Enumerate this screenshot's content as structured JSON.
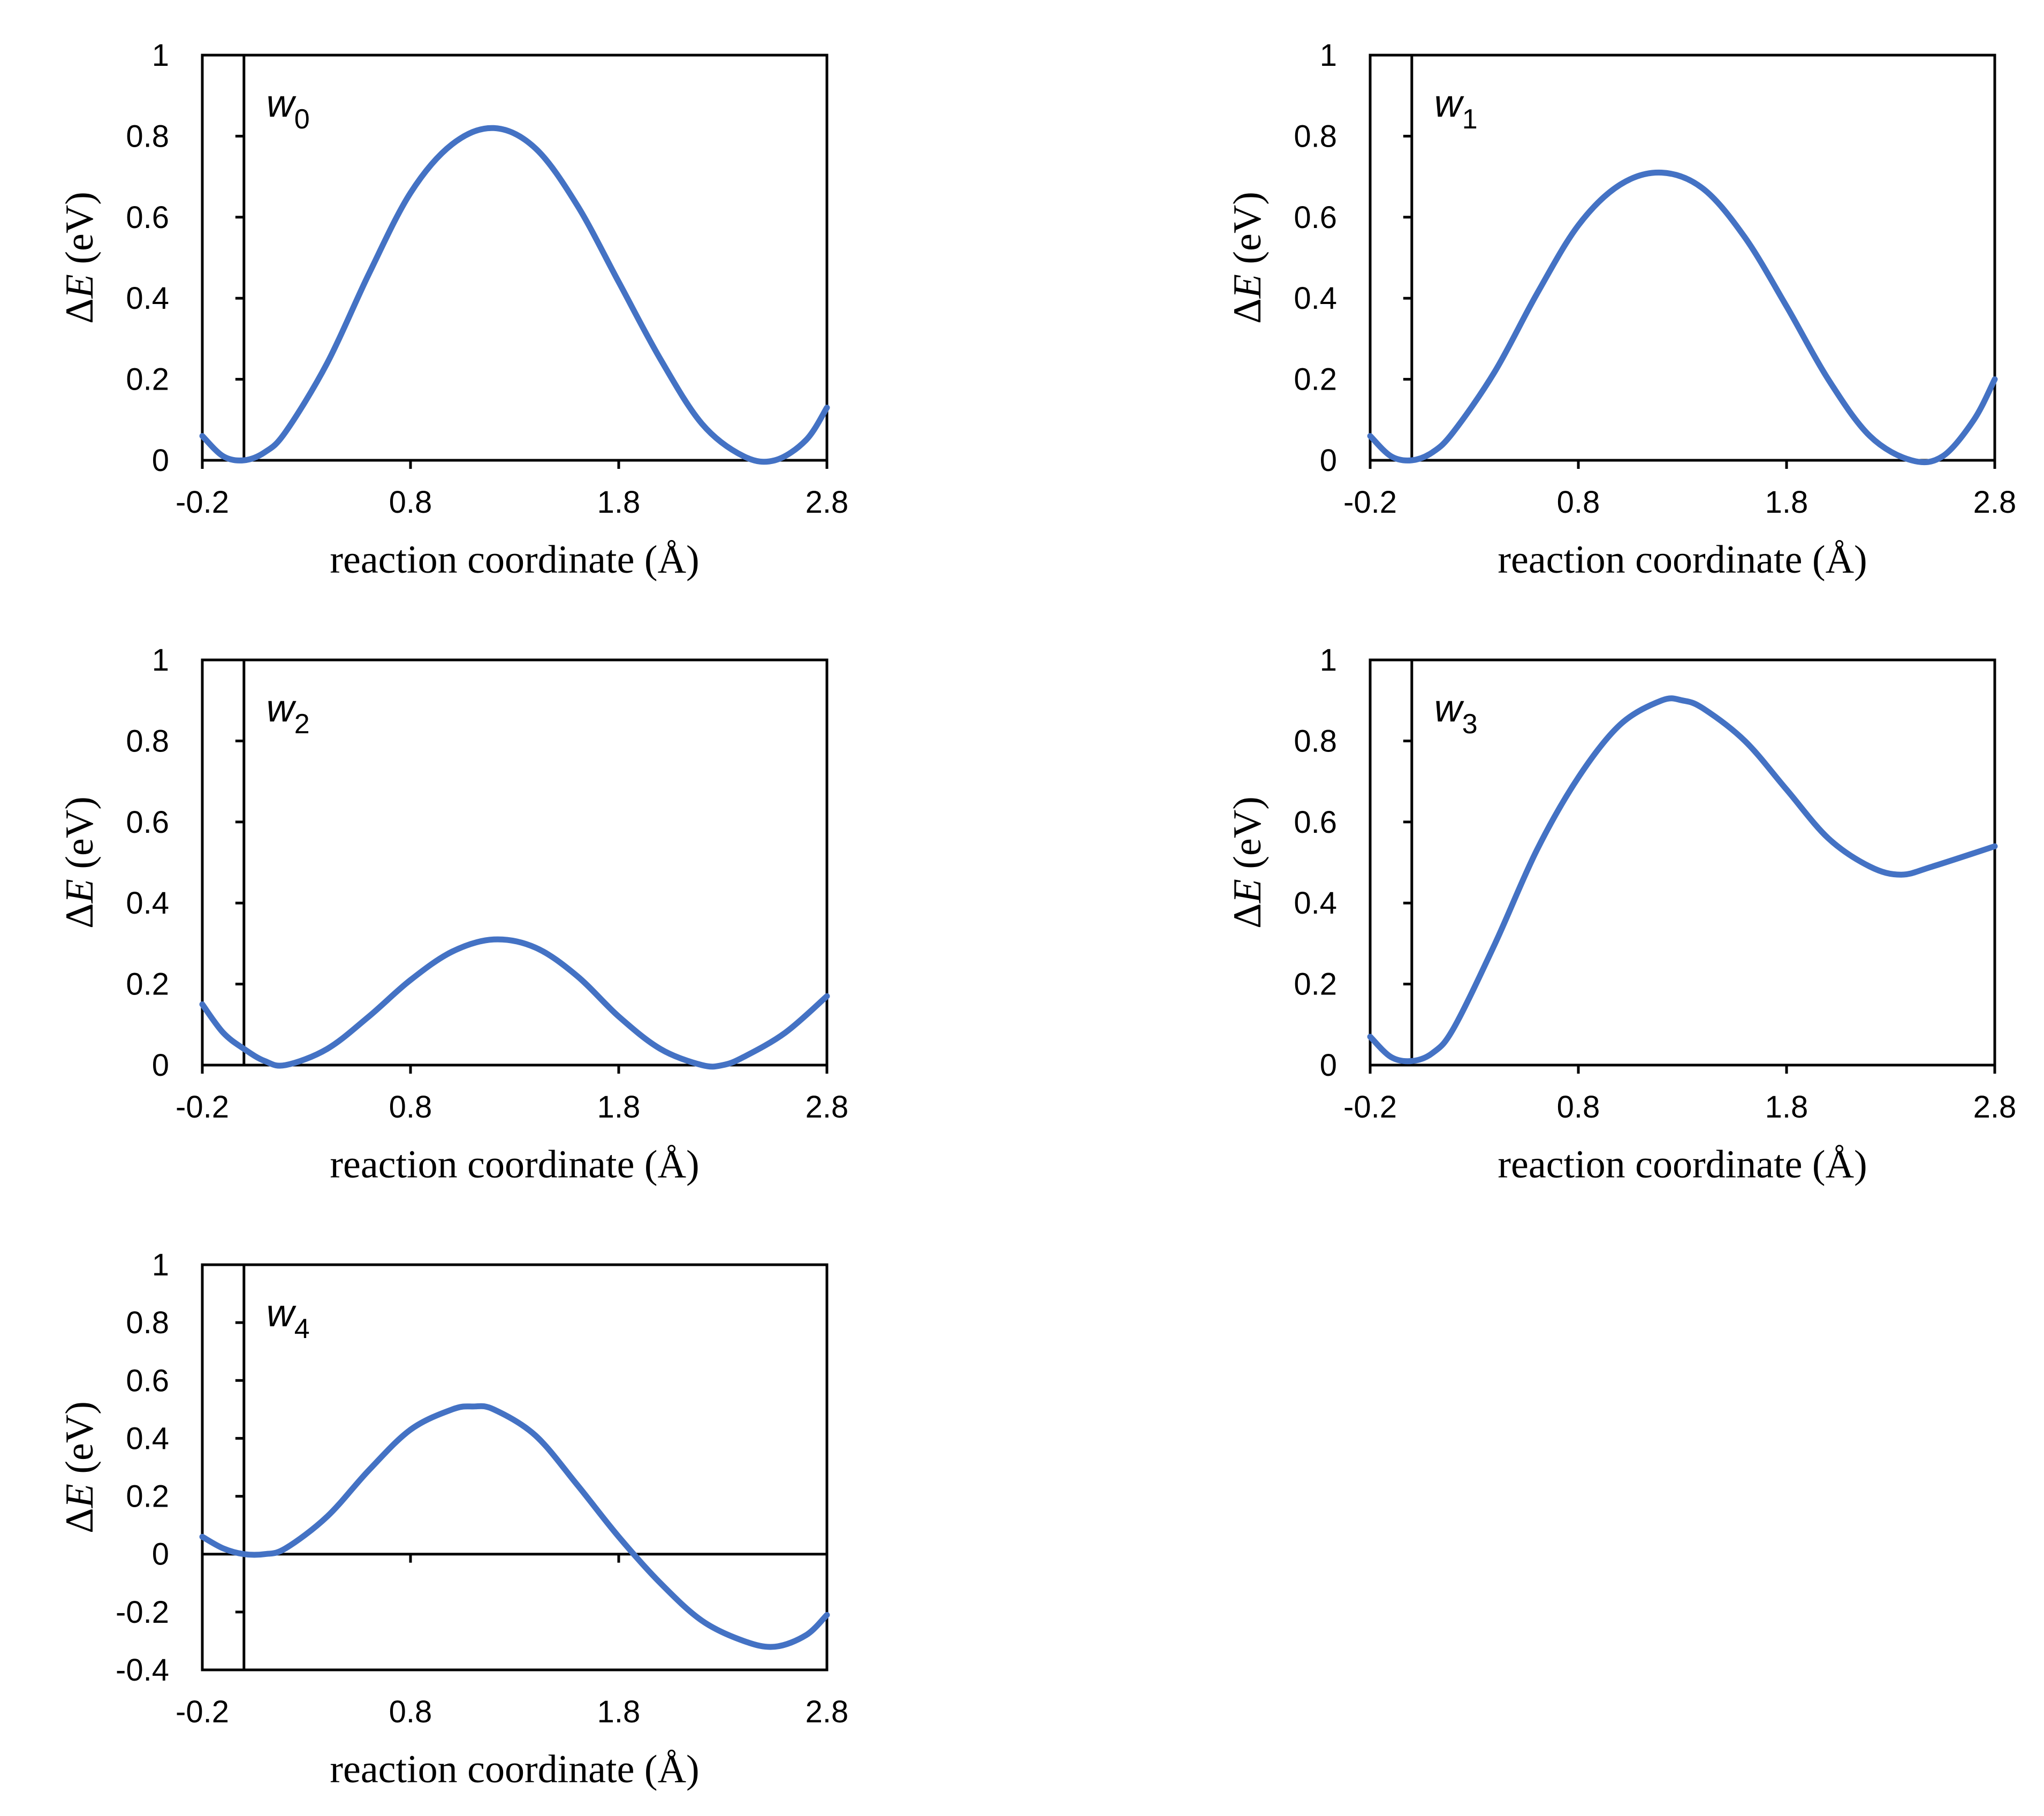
{
  "figure": {
    "panels": [
      "w0",
      "w1",
      "w2",
      "w3",
      "w4"
    ]
  },
  "chart_data": [
    {
      "id": "w0",
      "type": "line",
      "label_main": "w",
      "label_sub": "0",
      "label_sub_italic": false,
      "xlabel": "reaction coordinate (Å)",
      "ylabel_delta": "Δ",
      "ylabel_var": "E",
      "ylabel_unit": " (eV)",
      "xlim": [
        -0.2,
        2.8
      ],
      "ylim": [
        0,
        1
      ],
      "xticks": [
        -0.2,
        0.8,
        1.8,
        2.8
      ],
      "xtick_labels": [
        "-0.2",
        "0.8",
        "1.8",
        "2.8"
      ],
      "yticks": [
        0,
        0.2,
        0.4,
        0.6,
        0.8,
        1
      ],
      "ytick_labels": [
        "0",
        "0.2",
        "0.4",
        "0.6",
        "0.8",
        "1"
      ],
      "vline_x": 0,
      "zero_line": false,
      "series": [
        {
          "name": "w0",
          "x": [
            -0.2,
            -0.1,
            0.0,
            0.1,
            0.2,
            0.4,
            0.6,
            0.8,
            1.0,
            1.2,
            1.4,
            1.6,
            1.8,
            2.0,
            2.2,
            2.4,
            2.55,
            2.7,
            2.8
          ],
          "y": [
            0.06,
            0.01,
            0.0,
            0.02,
            0.07,
            0.24,
            0.46,
            0.66,
            0.78,
            0.82,
            0.77,
            0.63,
            0.44,
            0.25,
            0.09,
            0.01,
            0.0,
            0.05,
            0.13
          ]
        }
      ]
    },
    {
      "id": "w1",
      "type": "line",
      "label_main": "w",
      "label_sub": "1",
      "label_sub_italic": true,
      "xlabel": "reaction coordinate (Å)",
      "ylabel_delta": "Δ",
      "ylabel_var": "E",
      "ylabel_unit": " (eV)",
      "xlim": [
        -0.2,
        2.8
      ],
      "ylim": [
        0,
        1
      ],
      "xticks": [
        -0.2,
        0.8,
        1.8,
        2.8
      ],
      "xtick_labels": [
        "-0.2",
        "0.8",
        "1.8",
        "2.8"
      ],
      "yticks": [
        0,
        0.2,
        0.4,
        0.6,
        0.8,
        1
      ],
      "ytick_labels": [
        "0",
        "0.2",
        "0.4",
        "0.6",
        "0.8",
        "1"
      ],
      "vline_x": 0,
      "zero_line": false,
      "series": [
        {
          "name": "w1",
          "x": [
            -0.2,
            -0.1,
            0.0,
            0.1,
            0.2,
            0.4,
            0.6,
            0.8,
            1.0,
            1.2,
            1.4,
            1.6,
            1.8,
            2.0,
            2.2,
            2.4,
            2.55,
            2.7,
            2.8
          ],
          "y": [
            0.06,
            0.01,
            0.0,
            0.02,
            0.07,
            0.22,
            0.41,
            0.58,
            0.68,
            0.71,
            0.67,
            0.55,
            0.38,
            0.2,
            0.06,
            0.0,
            0.01,
            0.1,
            0.2
          ]
        }
      ]
    },
    {
      "id": "w2",
      "type": "line",
      "label_main": "w",
      "label_sub": "2",
      "label_sub_italic": false,
      "xlabel": "reaction coordinate (Å)",
      "ylabel_delta": "Δ",
      "ylabel_var": "E",
      "ylabel_unit": " (eV)",
      "xlim": [
        -0.2,
        2.8
      ],
      "ylim": [
        0,
        1
      ],
      "xticks": [
        -0.2,
        0.8,
        1.8,
        2.8
      ],
      "xtick_labels": [
        "-0.2",
        "0.8",
        "1.8",
        "2.8"
      ],
      "yticks": [
        0,
        0.2,
        0.4,
        0.6,
        0.8,
        1
      ],
      "ytick_labels": [
        "0",
        "0.2",
        "0.4",
        "0.6",
        "0.8",
        "1"
      ],
      "vline_x": 0,
      "zero_line": false,
      "series": [
        {
          "name": "w2",
          "x": [
            -0.2,
            -0.1,
            0.0,
            0.1,
            0.2,
            0.4,
            0.6,
            0.8,
            1.0,
            1.2,
            1.4,
            1.6,
            1.8,
            2.0,
            2.2,
            2.3,
            2.4,
            2.6,
            2.8
          ],
          "y": [
            0.15,
            0.08,
            0.04,
            0.01,
            0.0,
            0.04,
            0.12,
            0.21,
            0.28,
            0.31,
            0.29,
            0.22,
            0.12,
            0.04,
            0.0,
            0.0,
            0.02,
            0.08,
            0.17
          ]
        }
      ]
    },
    {
      "id": "w3",
      "type": "line",
      "label_main": "w",
      "label_sub": "3",
      "label_sub_italic": false,
      "xlabel": "reaction coordinate (Å)",
      "ylabel_delta": "Δ",
      "ylabel_var": "E",
      "ylabel_unit": " (eV)",
      "xlim": [
        -0.2,
        2.8
      ],
      "ylim": [
        0,
        1
      ],
      "xticks": [
        -0.2,
        0.8,
        1.8,
        2.8
      ],
      "xtick_labels": [
        "-0.2",
        "0.8",
        "1.8",
        "2.8"
      ],
      "yticks": [
        0,
        0.2,
        0.4,
        0.6,
        0.8,
        1
      ],
      "ytick_labels": [
        "0",
        "0.2",
        "0.4",
        "0.6",
        "0.8",
        "1"
      ],
      "vline_x": 0,
      "zero_line": false,
      "series": [
        {
          "name": "w3",
          "x": [
            -0.2,
            -0.1,
            0.0,
            0.1,
            0.2,
            0.4,
            0.6,
            0.8,
            1.0,
            1.2,
            1.3,
            1.4,
            1.6,
            1.8,
            2.0,
            2.2,
            2.35,
            2.5,
            2.8
          ],
          "y": [
            0.07,
            0.02,
            0.01,
            0.03,
            0.09,
            0.3,
            0.53,
            0.71,
            0.84,
            0.9,
            0.9,
            0.88,
            0.8,
            0.68,
            0.56,
            0.49,
            0.47,
            0.49,
            0.54
          ]
        }
      ]
    },
    {
      "id": "w4",
      "type": "line",
      "label_main": "w",
      "label_sub": "4",
      "label_sub_italic": false,
      "xlabel": "reaction coordinate (Å)",
      "ylabel_delta": "Δ",
      "ylabel_var": "E",
      "ylabel_unit": " (eV)",
      "xlim": [
        -0.2,
        2.8
      ],
      "ylim": [
        -0.4,
        1
      ],
      "xticks": [
        -0.2,
        0.8,
        1.8,
        2.8
      ],
      "xtick_labels": [
        "-0.2",
        "0.8",
        "1.8",
        "2.8"
      ],
      "yticks": [
        -0.4,
        -0.2,
        0,
        0.2,
        0.4,
        0.6,
        0.8,
        1
      ],
      "ytick_labels": [
        "-0.4",
        "-0.2",
        "0",
        "0.2",
        "0.4",
        "0.6",
        "0.8",
        "1"
      ],
      "vline_x": 0,
      "zero_line": true,
      "series": [
        {
          "name": "w4",
          "x": [
            -0.2,
            -0.1,
            0.0,
            0.1,
            0.2,
            0.4,
            0.6,
            0.8,
            1.0,
            1.1,
            1.2,
            1.4,
            1.6,
            1.8,
            2.0,
            2.2,
            2.4,
            2.55,
            2.7,
            2.8
          ],
          "y": [
            0.06,
            0.02,
            0.0,
            0.0,
            0.02,
            0.13,
            0.29,
            0.43,
            0.5,
            0.51,
            0.5,
            0.41,
            0.24,
            0.06,
            -0.1,
            -0.23,
            -0.3,
            -0.32,
            -0.28,
            -0.21
          ]
        }
      ]
    }
  ]
}
